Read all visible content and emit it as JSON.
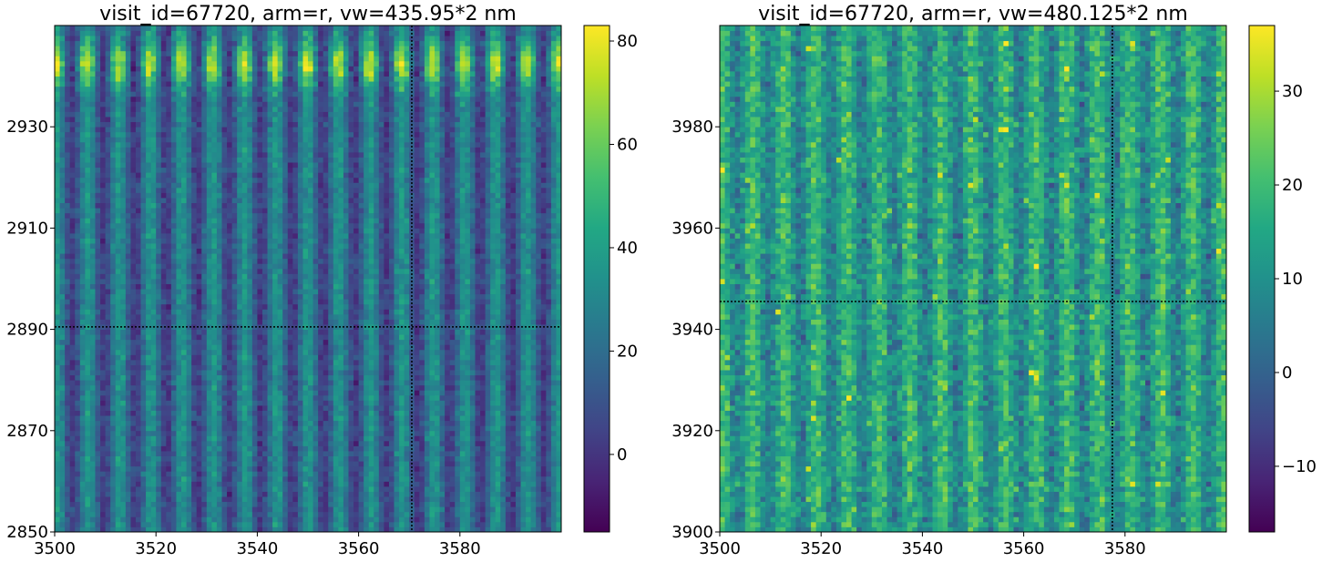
{
  "chart_data": [
    {
      "type": "heatmap",
      "title": "visit_id=67720, arm=r, vw=435.95*2 nm",
      "xlim": [
        3500,
        3599
      ],
      "ylim": [
        2850,
        2949
      ],
      "x_ticks": [
        "3500",
        "3520",
        "3540",
        "3560",
        "3580"
      ],
      "y_ticks": [
        "2850",
        "2870",
        "2890",
        "2910",
        "2930"
      ],
      "x_tick_values": [
        3500,
        3520,
        3540,
        3560,
        3580
      ],
      "y_tick_values": [
        2850,
        2870,
        2890,
        2910,
        2930
      ],
      "colorbar": {
        "range": [
          -15,
          83
        ],
        "ticks": [
          "0",
          "20",
          "40",
          "60",
          "80"
        ],
        "tick_values": [
          0,
          20,
          40,
          60,
          80
        ],
        "colormap": "viridis"
      },
      "crosshair": {
        "x": 3570,
        "y": 2890
      },
      "pattern": "vertical fringes with period ~6.2 px; bright band (up to ~80) near rows 2938-2946; background -10 to 40"
    },
    {
      "type": "heatmap",
      "title": "visit_id=67720, arm=r, vw=480.125*2 nm",
      "xlim": [
        3500,
        3599
      ],
      "ylim": [
        3900,
        3999
      ],
      "x_ticks": [
        "3500",
        "3520",
        "3540",
        "3560",
        "3580"
      ],
      "y_ticks": [
        "3900",
        "3920",
        "3940",
        "3960",
        "3980"
      ],
      "x_tick_values": [
        3500,
        3520,
        3540,
        3560,
        3580
      ],
      "y_tick_values": [
        3900,
        3920,
        3940,
        3960,
        3980
      ],
      "colorbar": {
        "range": [
          -17,
          37
        ],
        "ticks": [
          "−10",
          "0",
          "10",
          "20",
          "30"
        ],
        "tick_values": [
          -10,
          0,
          10,
          20,
          30
        ],
        "colormap": "viridis"
      },
      "crosshair": {
        "x": 3577,
        "y": 3945
      },
      "pattern": "noisy vertical fringes with period ~6.2 px; values mostly 0-30"
    }
  ]
}
